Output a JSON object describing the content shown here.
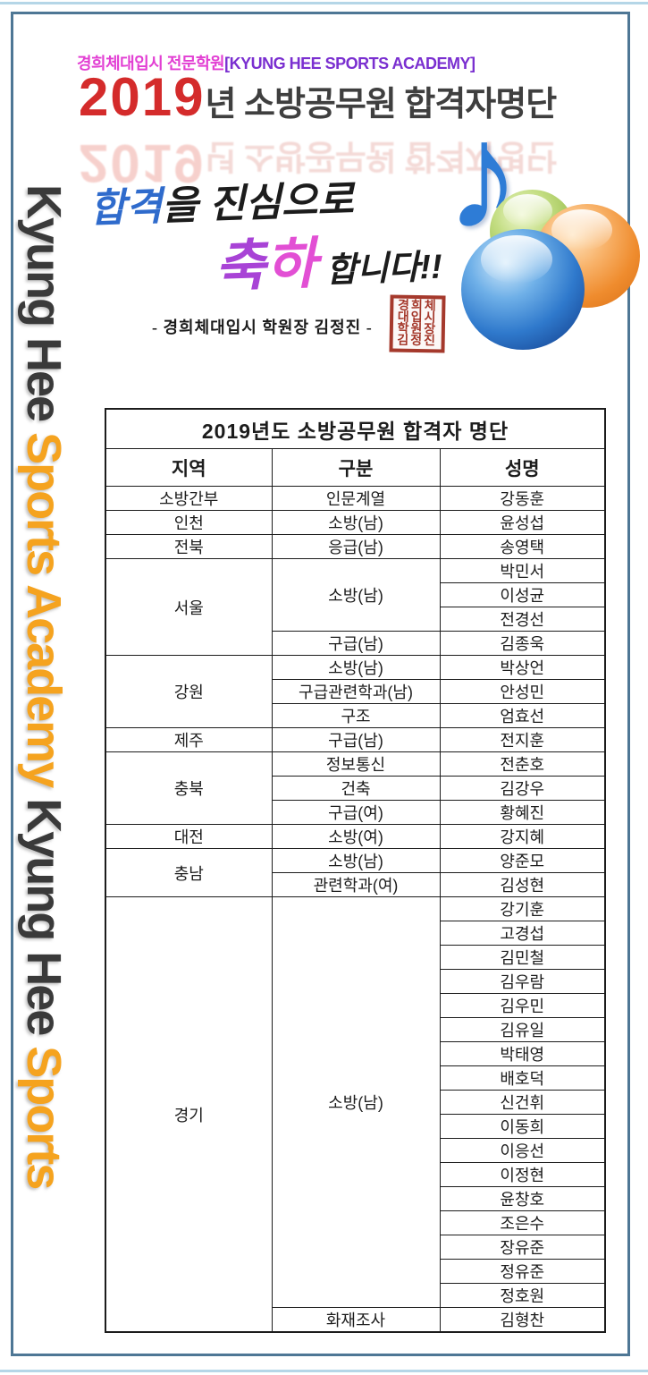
{
  "frame": {
    "border_color": "#4e7795",
    "top_line_color": "#b5d6e7"
  },
  "side_banner": {
    "segments": [
      {
        "text": "Kyung Hee ",
        "color": "#3a3a3a"
      },
      {
        "text": "Sports Academy ",
        "color": "#f5a31f"
      },
      {
        "text": "Kyung Hee ",
        "color": "#3a3a3a"
      },
      {
        "text": "Sports",
        "color": "#f5a31f"
      }
    ]
  },
  "header": {
    "academy_line": {
      "korean": "경희체대입시 전문학원",
      "english": "[KYUNG HEE SPORTS ACADEMY]",
      "korean_color": "#e23fd3",
      "english_color": "#7a2fd0"
    },
    "main_title": {
      "year": "2019",
      "rest": "년 소방공무원 합격자명단",
      "year_color": "#d42b2b",
      "rest_color": "#3f3f3f"
    },
    "congrats": {
      "line1_blue": "합격",
      "line1_rest": "을 진심으로",
      "line2_char1": "축",
      "line2_char2": "하",
      "line2_rest": "합니다!!",
      "blue_color": "#2f6bcc",
      "magenta_color": "#d24bd5"
    },
    "signature": "- 경희체대입시 학원장 김정진 -",
    "stamp_text": "경희체대입시학원장김정진",
    "stamp_color": "#a5392c"
  },
  "graphics": {
    "music_note_glyph": "♪",
    "note_color": "#2e7cd6",
    "ball_colors": {
      "green": "#9cc050",
      "orange": "#ef8c2e",
      "blue": "#2f79cc"
    }
  },
  "table": {
    "title": "2019년도 소방공무원 합격자 명단",
    "columns": [
      "지역",
      "구분",
      "성명"
    ],
    "groups": [
      {
        "region": "소방간부",
        "categories": [
          {
            "label": "인문계열",
            "names": [
              "강동훈"
            ]
          }
        ]
      },
      {
        "region": "인천",
        "categories": [
          {
            "label": "소방(남)",
            "names": [
              "윤성섭"
            ]
          }
        ]
      },
      {
        "region": "전북",
        "categories": [
          {
            "label": "응급(남)",
            "names": [
              "송영택"
            ]
          }
        ]
      },
      {
        "region": "서울",
        "categories": [
          {
            "label": "소방(남)",
            "names": [
              "박민서",
              "이성균",
              "전경선"
            ]
          },
          {
            "label": "구급(남)",
            "names": [
              "김종욱"
            ]
          }
        ]
      },
      {
        "region": "강원",
        "categories": [
          {
            "label": "소방(남)",
            "names": [
              "박상언"
            ]
          },
          {
            "label": "구급관련학과(남)",
            "names": [
              "안성민"
            ]
          },
          {
            "label": "구조",
            "names": [
              "엄효선"
            ]
          }
        ]
      },
      {
        "region": "제주",
        "categories": [
          {
            "label": "구급(남)",
            "names": [
              "전지훈"
            ]
          }
        ]
      },
      {
        "region": "충북",
        "categories": [
          {
            "label": "정보통신",
            "names": [
              "전춘호"
            ]
          },
          {
            "label": "건축",
            "names": [
              "김강우"
            ]
          },
          {
            "label": "구급(여)",
            "names": [
              "황혜진"
            ]
          }
        ]
      },
      {
        "region": "대전",
        "categories": [
          {
            "label": "소방(여)",
            "names": [
              "강지혜"
            ]
          }
        ]
      },
      {
        "region": "충남",
        "categories": [
          {
            "label": "소방(남)",
            "names": [
              "양준모"
            ]
          },
          {
            "label": "관련학과(여)",
            "names": [
              "김성현"
            ]
          }
        ]
      },
      {
        "region": "경기",
        "categories": [
          {
            "label": "소방(남)",
            "names": [
              "강기훈",
              "고경섭",
              "김민철",
              "김우람",
              "김우민",
              "김유일",
              "박태영",
              "배호덕",
              "신건휘",
              "이동희",
              "이응선",
              "이정현",
              "윤창호",
              "조은수",
              "장유준",
              "정유준",
              "정호원"
            ]
          },
          {
            "label": "화재조사",
            "names": [
              "김형찬"
            ]
          }
        ]
      }
    ]
  }
}
